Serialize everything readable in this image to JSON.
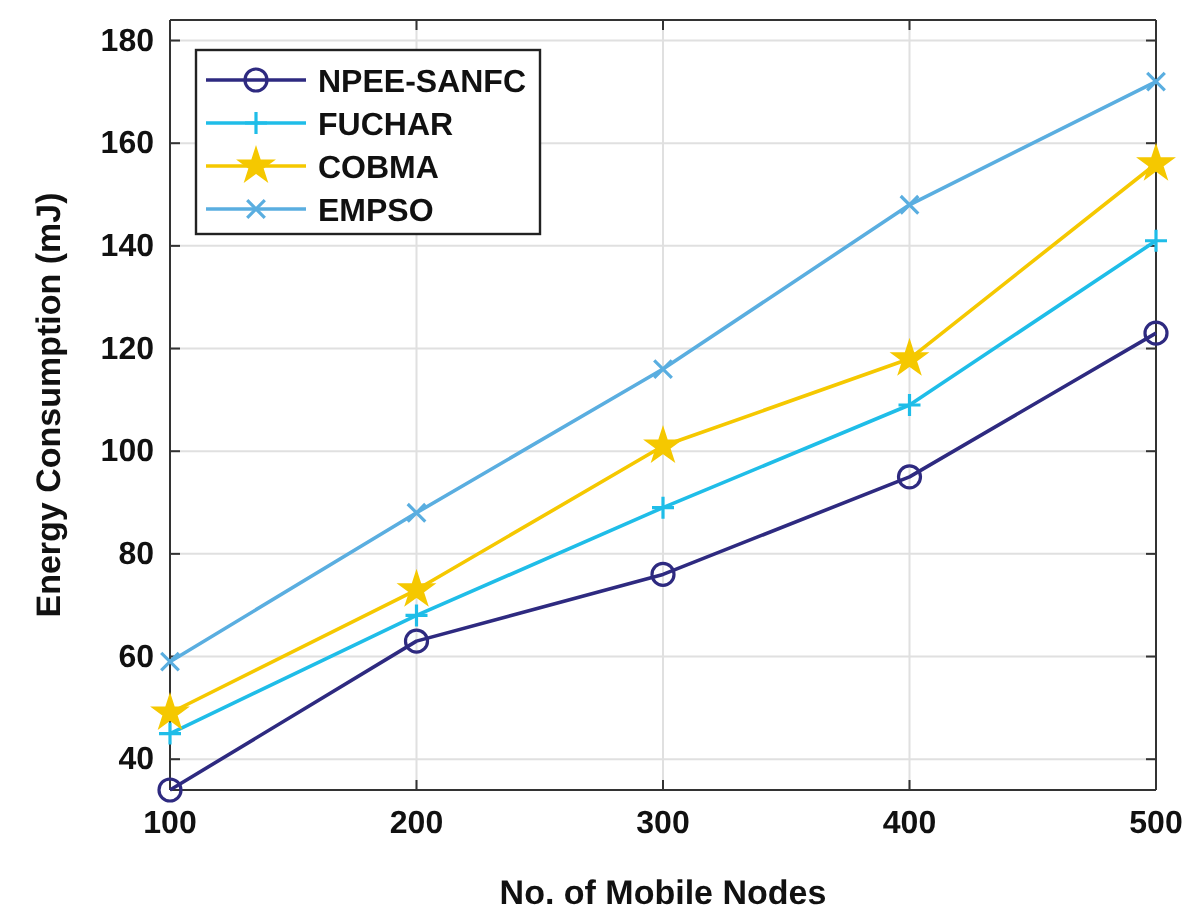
{
  "chart_data": {
    "type": "line",
    "xlabel": "No. of Mobile Nodes",
    "ylabel": "Energy Consumption (mJ)",
    "x": [
      100,
      200,
      300,
      400,
      500
    ],
    "series": [
      {
        "name": "NPEE-SANFC",
        "color": "#2e2a80",
        "marker": "circle",
        "values": [
          34,
          63,
          76,
          95,
          123
        ]
      },
      {
        "name": "FUCHAR",
        "color": "#1fbde8",
        "marker": "cross",
        "values": [
          45,
          68,
          89,
          109,
          141
        ]
      },
      {
        "name": "COBMA",
        "color": "#f5c800",
        "marker": "star",
        "values": [
          49,
          73,
          101,
          118,
          156
        ]
      },
      {
        "name": "EMPSO",
        "color": "#5aaee0",
        "marker": "x",
        "values": [
          59,
          88,
          116,
          148,
          172
        ]
      }
    ],
    "xlim": [
      100,
      500
    ],
    "xticks": [
      100,
      200,
      300,
      400,
      500
    ],
    "ylim": [
      34,
      184
    ],
    "yticks": [
      40,
      60,
      80,
      100,
      120,
      140,
      160,
      180
    ],
    "grid": true,
    "legend": "top left",
    "line_style": "solid"
  }
}
